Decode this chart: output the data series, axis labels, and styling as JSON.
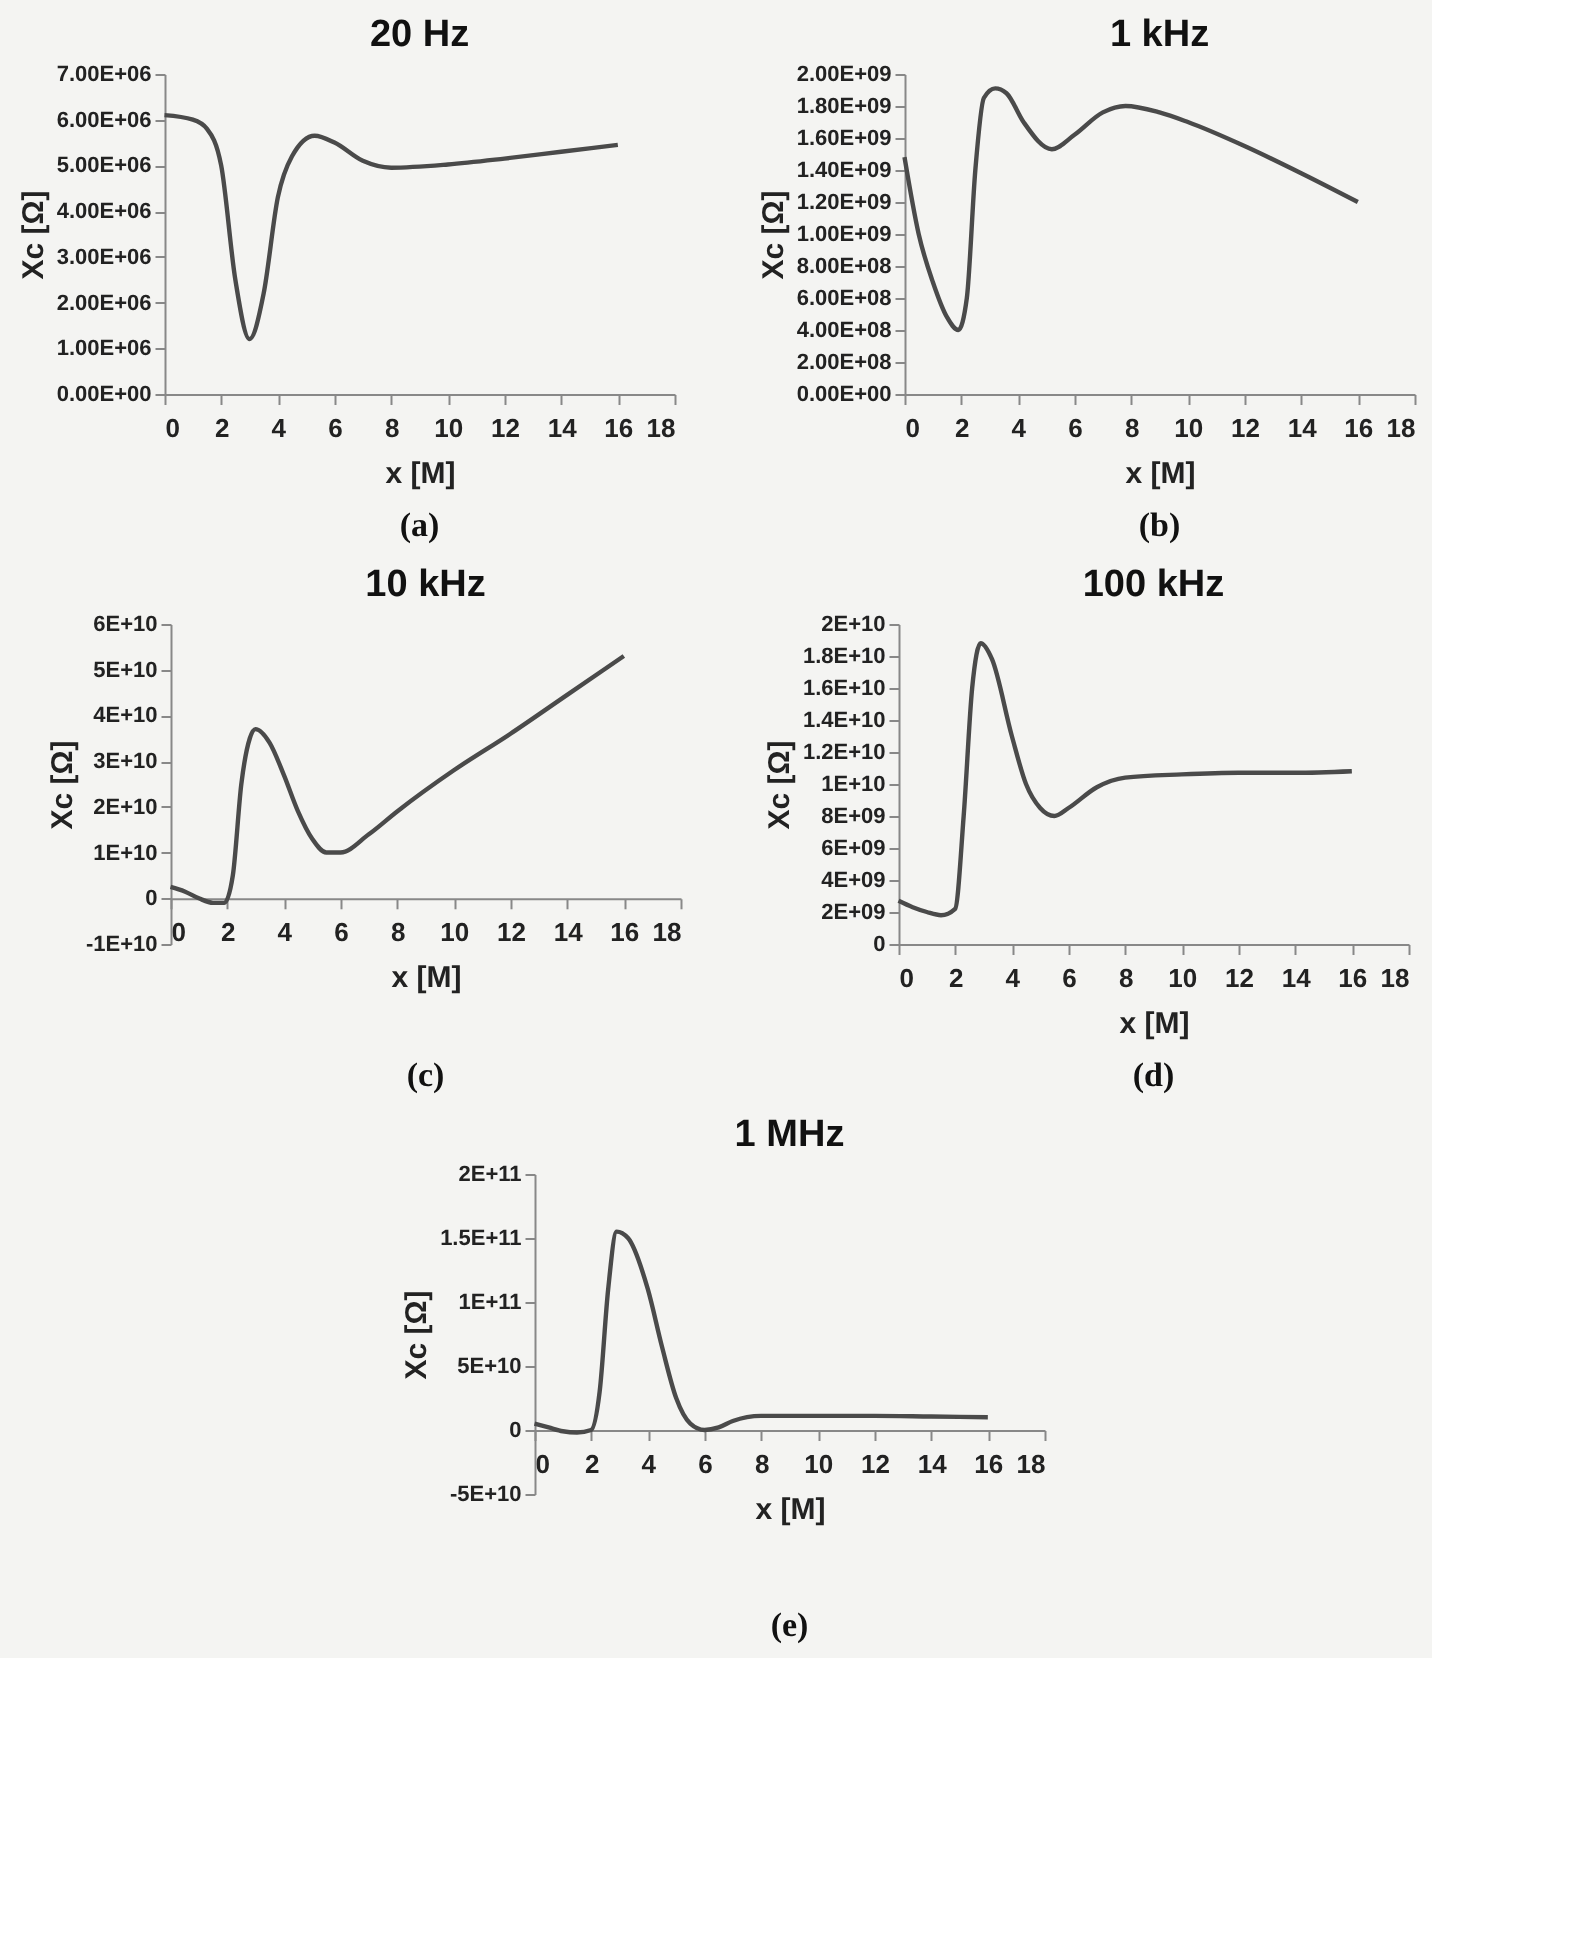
{
  "chart_data": [
    {
      "type": "line",
      "title": "20 Hz",
      "xlabel": "x [M]",
      "ylabel": "Xc [Ω]",
      "annotations": [
        "(a)"
      ],
      "grid": false,
      "xlim": [
        0,
        18
      ],
      "xticks": [
        0,
        2,
        4,
        6,
        8,
        10,
        12,
        14,
        16,
        18
      ],
      "ylim": [
        0,
        7000000
      ],
      "yticks": [
        {
          "value": 0,
          "label": "0.00E+00"
        },
        {
          "value": 1000000,
          "label": "1.00E+06"
        },
        {
          "value": 2000000,
          "label": "2.00E+06"
        },
        {
          "value": 3000000,
          "label": "3.00E+06"
        },
        {
          "value": 4000000,
          "label": "4.00E+06"
        },
        {
          "value": 5000000,
          "label": "5.00E+06"
        },
        {
          "value": 6000000,
          "label": "6.00E+06"
        },
        {
          "value": 7000000,
          "label": "7.00E+06"
        }
      ],
      "x": [
        0,
        1,
        1.5,
        2,
        2.5,
        3,
        3.5,
        4,
        4.5,
        5.3,
        6,
        7,
        8,
        10,
        12,
        14,
        16
      ],
      "series": [
        {
          "color": "#4a4a4a",
          "values": [
            6100000,
            6000000,
            5800000,
            5000000,
            2500000,
            1200000,
            2200000,
            4300000,
            5200000,
            5650000,
            5500000,
            5100000,
            4950000,
            5020000,
            5150000,
            5300000,
            5450000
          ]
        }
      ]
    },
    {
      "type": "line",
      "title": "1 kHz",
      "xlabel": "x [M]",
      "ylabel": "Xc [Ω]",
      "annotations": [
        "(b)"
      ],
      "grid": false,
      "xlim": [
        0,
        18
      ],
      "xticks": [
        0,
        2,
        4,
        6,
        8,
        10,
        12,
        14,
        16,
        18
      ],
      "ylim": [
        0,
        2000000000
      ],
      "yticks": [
        {
          "value": 0,
          "label": "0.00E+00"
        },
        {
          "value": 200000000,
          "label": "2.00E+08"
        },
        {
          "value": 400000000,
          "label": "4.00E+08"
        },
        {
          "value": 600000000,
          "label": "6.00E+08"
        },
        {
          "value": 800000000,
          "label": "8.00E+08"
        },
        {
          "value": 1000000000,
          "label": "1.00E+09"
        },
        {
          "value": 1200000000,
          "label": "1.20E+09"
        },
        {
          "value": 1400000000,
          "label": "1.40E+09"
        },
        {
          "value": 1600000000,
          "label": "1.60E+09"
        },
        {
          "value": 1800000000,
          "label": "1.80E+09"
        },
        {
          "value": 2000000000,
          "label": "2.00E+09"
        }
      ],
      "x": [
        0,
        0.5,
        1,
        1.5,
        1.9,
        2.2,
        2.5,
        2.8,
        3.2,
        3.6,
        4.2,
        5.2,
        6,
        7,
        7.8,
        9,
        10,
        12,
        14,
        16
      ],
      "series": [
        {
          "color": "#4a4a4a",
          "values": [
            1480000000,
            1000000000,
            700000000,
            480000000,
            400000000,
            600000000,
            1400000000,
            1850000000,
            1910000000,
            1880000000,
            1700000000,
            1530000000,
            1620000000,
            1760000000,
            1800000000,
            1760000000,
            1700000000,
            1550000000,
            1380000000,
            1200000000
          ]
        }
      ]
    },
    {
      "type": "line",
      "title": "10 kHz",
      "xlabel": "x [M]",
      "ylabel": "Xc [Ω]",
      "annotations": [
        "(c)"
      ],
      "grid": false,
      "xlim": [
        0,
        18
      ],
      "xticks": [
        0,
        2,
        4,
        6,
        8,
        10,
        12,
        14,
        16,
        18
      ],
      "ylim": [
        -10000000000,
        60000000000
      ],
      "yticks": [
        {
          "value": -10000000000,
          "label": "-1E+10"
        },
        0,
        {
          "value": 10000000000,
          "label": "1E+10"
        },
        {
          "value": 20000000000,
          "label": "2E+10"
        },
        {
          "value": 30000000000,
          "label": "3E+10"
        },
        {
          "value": 40000000000,
          "label": "4E+10"
        },
        {
          "value": 50000000000,
          "label": "5E+10"
        },
        {
          "value": 60000000000,
          "label": "6E+10"
        }
      ],
      "x": [
        0,
        0.5,
        1,
        1.5,
        1.9,
        2.2,
        2.5,
        2.8,
        3,
        3.5,
        4,
        4.5,
        5,
        5.5,
        6,
        7,
        8,
        10,
        12,
        14,
        16
      ],
      "series": [
        {
          "color": "#4a4a4a",
          "values": [
            2500000000,
            1500000000,
            0,
            -1000000000,
            -1000000000,
            5000000000,
            25000000000,
            35000000000,
            37000000000,
            34000000000,
            27000000000,
            19000000000,
            13000000000,
            10000000000,
            10000000000,
            14000000000,
            19000000000,
            28000000000,
            36000000000,
            44500000000,
            53000000000
          ]
        }
      ]
    },
    {
      "type": "line",
      "title": "100 kHz",
      "xlabel": "x [M]",
      "ylabel": "Xc [Ω]",
      "annotations": [
        "(d)"
      ],
      "grid": false,
      "xlim": [
        0,
        18
      ],
      "xticks": [
        0,
        2,
        4,
        6,
        8,
        10,
        12,
        14,
        16,
        18
      ],
      "ylim": [
        0,
        20000000000
      ],
      "yticks": [
        0,
        {
          "value": 2000000000,
          "label": "2E+09"
        },
        {
          "value": 4000000000,
          "label": "4E+09"
        },
        {
          "value": 6000000000,
          "label": "6E+09"
        },
        {
          "value": 8000000000,
          "label": "8E+09"
        },
        {
          "value": 10000000000,
          "label": "1E+10"
        },
        {
          "value": 12000000000,
          "label": "1.2E+10"
        },
        {
          "value": 14000000000,
          "label": "1.4E+10"
        },
        {
          "value": 16000000000,
          "label": "1.6E+10"
        },
        {
          "value": 18000000000,
          "label": "1.8E+10"
        },
        {
          "value": 20000000000,
          "label": "2E+10"
        }
      ],
      "x": [
        0,
        0.5,
        1,
        1.5,
        2,
        2.3,
        2.6,
        2.9,
        3.3,
        4,
        4.5,
        5,
        5.5,
        6,
        7,
        8,
        10,
        12,
        14,
        16
      ],
      "series": [
        {
          "color": "#4a4a4a",
          "values": [
            2700000000,
            2300000000,
            2000000000,
            1800000000,
            2200000000,
            8000000000,
            16000000000,
            18800000000,
            17800000000,
            13000000000,
            10000000000,
            8500000000,
            8000000000,
            8500000000,
            9800000000,
            10400000000,
            10600000000,
            10700000000,
            10700000000,
            10800000000
          ]
        }
      ]
    },
    {
      "type": "line",
      "title": "1 MHz",
      "xlabel": "x [M]",
      "ylabel": "Xc [Ω]",
      "annotations": [
        "(e)"
      ],
      "grid": false,
      "xlim": [
        0,
        18
      ],
      "xticks": [
        0,
        2,
        4,
        6,
        8,
        10,
        12,
        14,
        16,
        18
      ],
      "ylim": [
        -50000000000,
        200000000000
      ],
      "yticks": [
        {
          "value": -50000000000,
          "label": "-5E+10"
        },
        0,
        {
          "value": 50000000000,
          "label": "5E+10"
        },
        {
          "value": 100000000000,
          "label": "1E+11"
        },
        {
          "value": 150000000000,
          "label": "1.5E+11"
        },
        {
          "value": 200000000000,
          "label": "2E+11"
        }
      ],
      "x": [
        0,
        0.5,
        1,
        1.5,
        2,
        2.3,
        2.6,
        2.9,
        3.3,
        4,
        4.5,
        5,
        5.5,
        6,
        6.5,
        7,
        8,
        10,
        12,
        14,
        16
      ],
      "series": [
        {
          "color": "#4a4a4a",
          "values": [
            5000000000,
            2000000000,
            -1000000000,
            -2000000000,
            0,
            30000000000,
            110000000000,
            155000000000,
            150000000000,
            110000000000,
            65000000000,
            25000000000,
            5000000000,
            0,
            2000000000,
            7000000000,
            11000000000,
            11000000000,
            11000000000,
            10500000000,
            10000000000
          ]
        }
      ]
    }
  ]
}
